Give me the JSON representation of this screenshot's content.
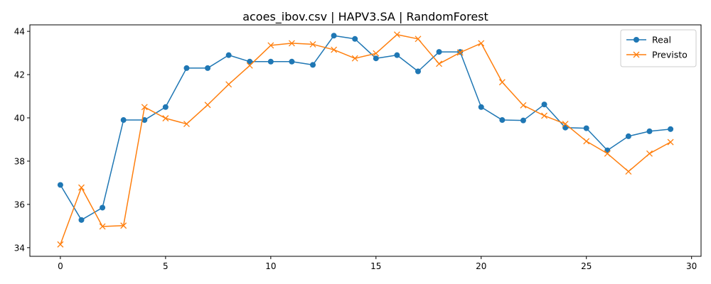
{
  "chart_data": {
    "type": "line",
    "title": "acoes_ibov.csv | HAPV3.SA | RandomForest",
    "xlabel": "",
    "ylabel": "",
    "xlim": [
      -1.45,
      30.45
    ],
    "ylim": [
      33.6,
      44.3
    ],
    "xticks": [
      0,
      5,
      10,
      15,
      20,
      25,
      30
    ],
    "yticks": [
      34,
      36,
      38,
      40,
      42,
      44
    ],
    "grid": false,
    "legend_position": "top-right",
    "x": [
      0,
      1,
      2,
      3,
      4,
      5,
      6,
      7,
      8,
      9,
      10,
      11,
      12,
      13,
      14,
      15,
      16,
      17,
      18,
      19,
      20,
      21,
      22,
      23,
      24,
      25,
      26,
      27,
      28,
      29
    ],
    "series": [
      {
        "name": "Real",
        "color": "#1f77b4",
        "marker": "circle",
        "values": [
          36.9,
          35.28,
          35.85,
          39.9,
          39.9,
          40.5,
          42.3,
          42.3,
          42.9,
          42.6,
          42.6,
          42.6,
          42.45,
          43.8,
          43.65,
          42.75,
          42.9,
          42.15,
          43.05,
          43.05,
          40.5,
          39.9,
          39.88,
          40.62,
          39.55,
          39.52,
          38.5,
          39.15,
          39.38,
          39.48
        ]
      },
      {
        "name": "Previsto",
        "color": "#ff7f0e",
        "marker": "x",
        "values": [
          34.15,
          36.78,
          34.98,
          35.02,
          40.5,
          39.98,
          39.72,
          40.6,
          41.55,
          42.42,
          43.35,
          43.45,
          43.4,
          43.15,
          42.75,
          42.98,
          43.85,
          43.65,
          42.5,
          43.02,
          43.45,
          41.65,
          40.58,
          40.1,
          39.72,
          38.92,
          38.35,
          37.52,
          38.35,
          38.88
        ]
      }
    ]
  }
}
